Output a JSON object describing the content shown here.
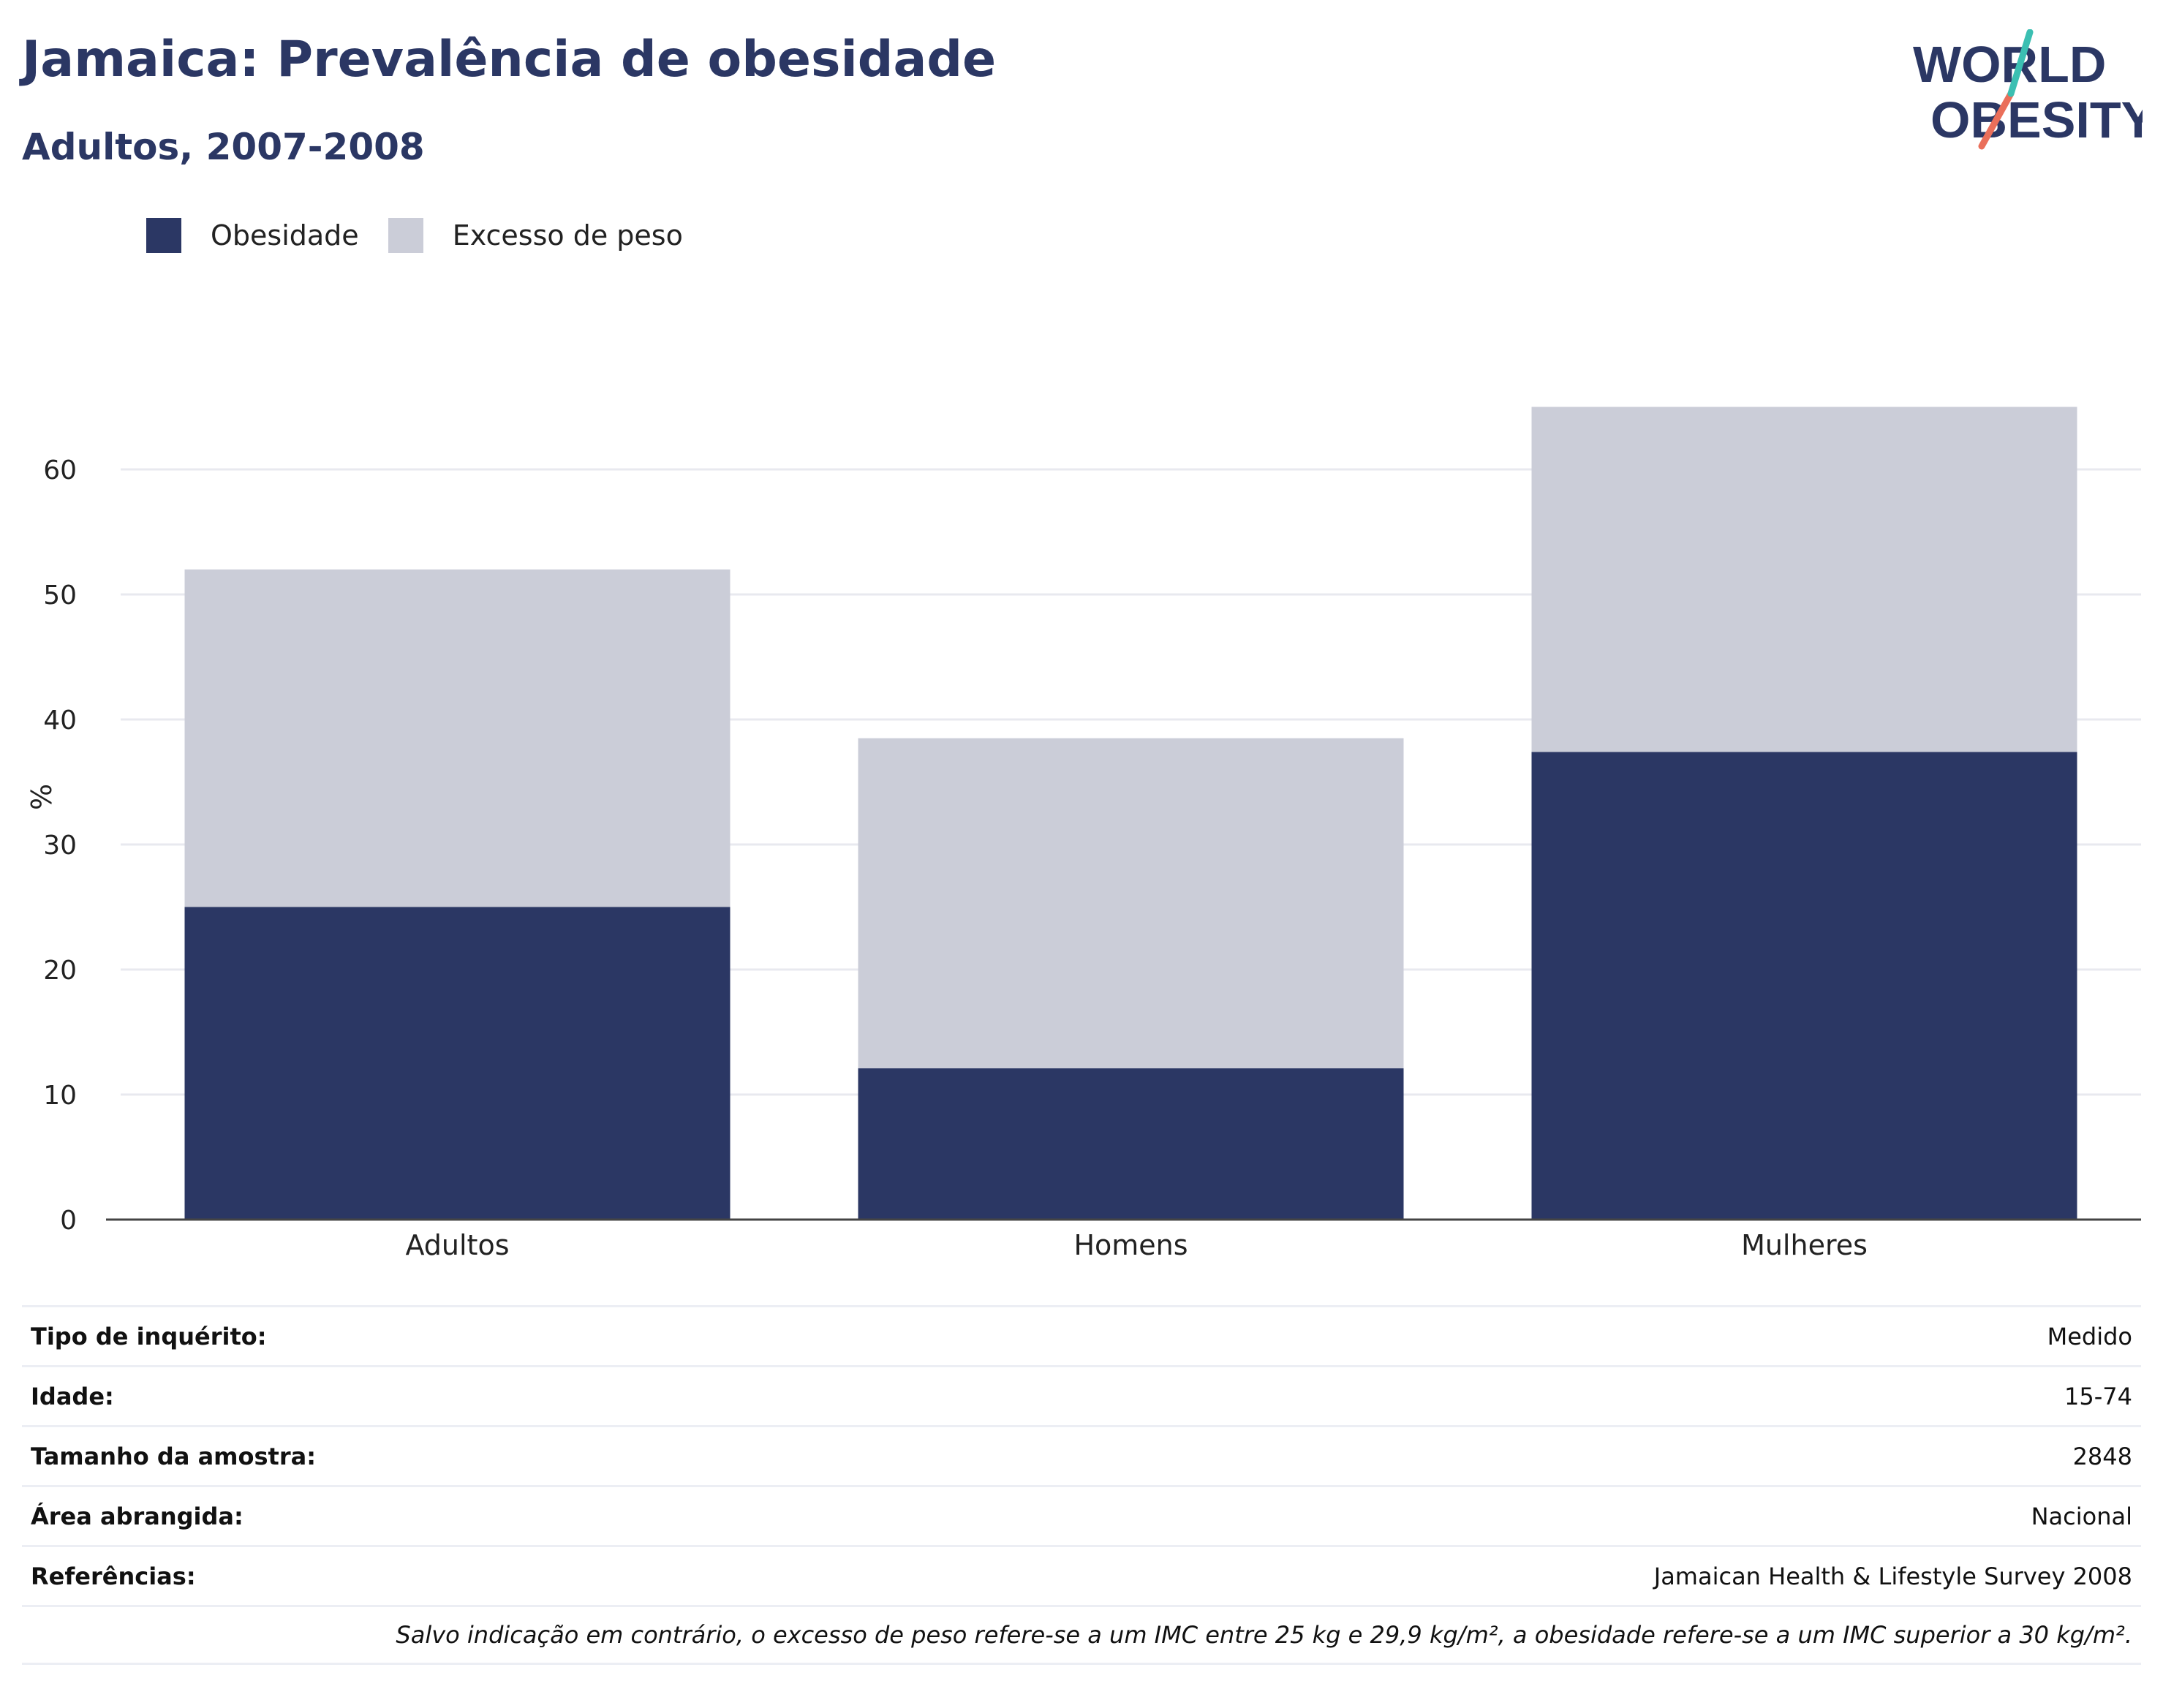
{
  "header": {
    "title": "Jamaica: Prevalência de obesidade",
    "subtitle": "Adultos, 2007-2008"
  },
  "logo": {
    "line1": "WORLD",
    "line2": "OBESITY"
  },
  "colors": {
    "obesity": "#2b3764",
    "overweight": "#cbcdd8",
    "title": "#2b3764",
    "grid": "#e8e9ef",
    "axis": "#444444",
    "logo_teal": "#3bbfb2",
    "logo_coral": "#ea6f5a"
  },
  "legend": [
    {
      "label": "Obesidade",
      "color": "#2b3764"
    },
    {
      "label": "Excesso de peso",
      "color": "#cbcdd8"
    }
  ],
  "chart_data": {
    "type": "bar",
    "stacked": true,
    "categories": [
      "Adultos",
      "Homens",
      "Mulheres"
    ],
    "series": [
      {
        "name": "Obesidade",
        "values": [
          25,
          12.1,
          37.4
        ]
      },
      {
        "name": "Excesso de peso",
        "values": [
          27,
          26.4,
          27.6
        ]
      }
    ],
    "ylabel": "%",
    "xlabel": "",
    "ylim": [
      0,
      70
    ],
    "yticks": [
      0,
      10,
      20,
      30,
      40,
      50,
      60
    ],
    "grid": true,
    "legend_position": "top-left"
  },
  "info": [
    {
      "key": "Tipo de inquérito:",
      "value": "Medido"
    },
    {
      "key": "Idade:",
      "value": "15-74"
    },
    {
      "key": "Tamanho da amostra:",
      "value": "2848"
    },
    {
      "key": "Área abrangida:",
      "value": "Nacional"
    },
    {
      "key": "Referências:",
      "value": "Jamaican Health & Lifestyle Survey 2008"
    }
  ],
  "note": "Salvo indicação em contrário, o excesso de peso refere-se a um IMC entre 25 kg e 29,9 kg/m², a obesidade refere-se a um IMC superior a 30 kg/m²."
}
